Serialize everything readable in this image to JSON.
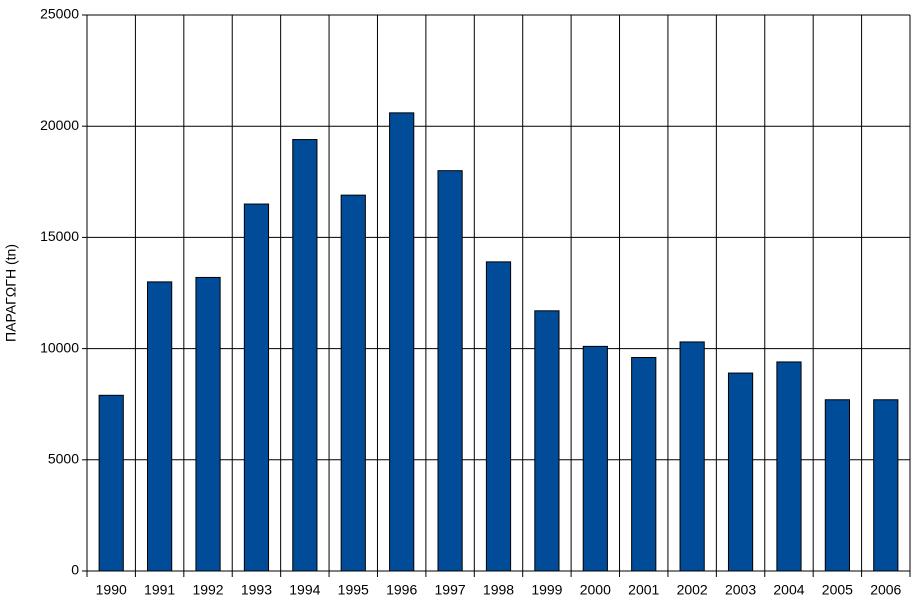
{
  "chart_data": {
    "type": "bar",
    "y_label": "ΠΑΡΑΓΩΓΗ (tn)",
    "categories": [
      "1990",
      "1991",
      "1992",
      "1993",
      "1994",
      "1995",
      "1996",
      "1997",
      "1998",
      "1999",
      "2000",
      "2001",
      "2002",
      "2003",
      "2004",
      "2005",
      "2006"
    ],
    "values": [
      7900,
      13000,
      13200,
      16500,
      19400,
      16900,
      20600,
      18000,
      13900,
      11700,
      10100,
      9600,
      10300,
      8900,
      9400,
      7700,
      7700
    ],
    "color": "#004c99",
    "ylim": [
      0,
      25000
    ],
    "yticks": [
      0,
      5000,
      10000,
      15000,
      20000,
      25000
    ],
    "grid": true
  }
}
